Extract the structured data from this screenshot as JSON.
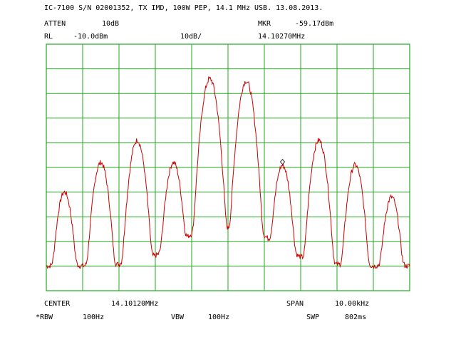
{
  "header": {
    "title": "IC-7100 S/N 02001352, TX IMD, 100W PEP, 14.1 MHz USB. 13.08.2013.",
    "atten_label": "ATTEN",
    "atten_value": "10dB",
    "mkr_label": "MKR",
    "mkr_level": "-59.17dBm",
    "rl_label": "RL",
    "rl_value": "-10.0dBm",
    "scale_value": "10dB/",
    "mkr_freq": "14.10270MHz"
  },
  "footer": {
    "center_label": "CENTER",
    "center_value": "14.10120MHz",
    "span_label": "SPAN",
    "span_value": "10.00kHz",
    "rbw_label": "*RBW",
    "rbw_value": "100Hz",
    "vbw_label": "VBW",
    "vbw_value": "100Hz",
    "swp_label": "SWP",
    "swp_value": "802ms"
  },
  "colors": {
    "grid": "#22aa22",
    "trace": "#cc0000",
    "text": "#000000",
    "background": "#ffffff"
  },
  "chart_data": {
    "type": "line",
    "x_unit": "MHz",
    "y_unit": "dBm",
    "xlim": [
      14.0962,
      14.1062
    ],
    "ylim": [
      -110,
      -10
    ],
    "grid": true,
    "grid_divisions": {
      "x": 10,
      "y": 10
    },
    "noise_floor_dbm": -100,
    "marker": {
      "x": 14.1027,
      "y": -59.17
    },
    "peaks": [
      {
        "x": 14.0967,
        "y": -70
      },
      {
        "x": 14.0977,
        "y": -58
      },
      {
        "x": 14.0987,
        "y": -49
      },
      {
        "x": 14.0997,
        "y": -58
      },
      {
        "x": 14.1007,
        "y": -24
      },
      {
        "x": 14.1017,
        "y": -25
      },
      {
        "x": 14.1027,
        "y": -59.17
      },
      {
        "x": 14.1037,
        "y": -49
      },
      {
        "x": 14.1047,
        "y": -59
      },
      {
        "x": 14.1057,
        "y": -72
      }
    ]
  }
}
